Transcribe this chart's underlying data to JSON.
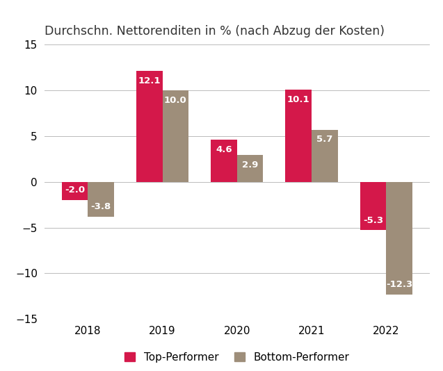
{
  "title": "Durchschn. Nettorenditen in % (nach Abzug der Kosten)",
  "years": [
    "2018",
    "2019",
    "2020",
    "2021",
    "2022"
  ],
  "top_performer": [
    -2.0,
    12.1,
    4.6,
    10.1,
    -5.3
  ],
  "bottom_performer": [
    -3.8,
    10.0,
    2.9,
    5.7,
    -12.3
  ],
  "top_color": "#D4184A",
  "bottom_color": "#9E8E7A",
  "ylim": [
    -15,
    15
  ],
  "yticks": [
    -15,
    -10,
    -5,
    0,
    5,
    10,
    15
  ],
  "bar_width": 0.35,
  "label_top": "Top-Performer",
  "label_bottom": "Bottom-Performer",
  "background_color": "#FFFFFF",
  "title_fontsize": 12.5,
  "tick_fontsize": 11,
  "label_fontsize": 11,
  "value_fontsize": 9.5
}
